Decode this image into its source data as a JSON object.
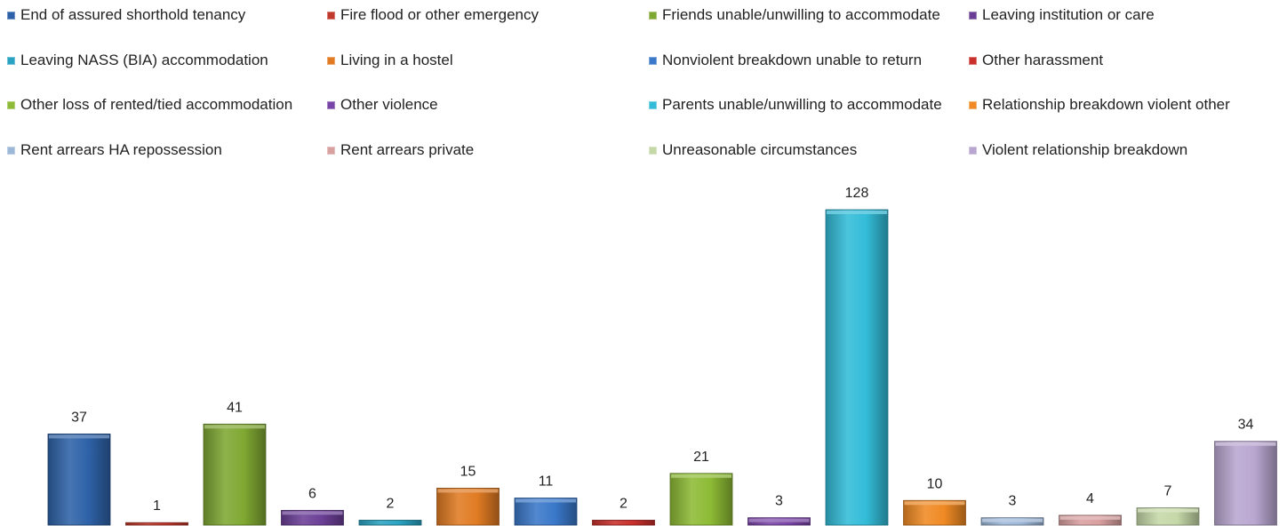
{
  "chart_data": {
    "type": "bar",
    "title": "",
    "xlabel": "",
    "ylabel": "",
    "ylim": [
      0,
      128
    ],
    "grid": false,
    "legend_position": "top",
    "categories": [
      "End of assured shorthold tenancy",
      "Fire flood or other emergency",
      "Friends unable/unwilling to accommodate",
      "Leaving institution or care",
      "Leaving NASS (BIA) accommodation",
      "Living in a hostel",
      "Nonviolent breakdown unable to return",
      "Other harassment",
      "Other loss of rented/tied accommodation",
      "Other violence",
      "Parents unable/unwilling to accommodate",
      "Relationship breakdown violent other",
      "Rent arrears HA repossession",
      "Rent arrears private",
      "Unreasonable circumstances",
      "Violent relationship breakdown"
    ],
    "values": [
      37,
      1,
      41,
      6,
      2,
      15,
      11,
      2,
      21,
      3,
      128,
      10,
      3,
      4,
      7,
      34
    ],
    "colors": [
      "#2e62a8",
      "#c0392b",
      "#7fa832",
      "#6b3f96",
      "#2aa3c2",
      "#e07b23",
      "#3a78c9",
      "#c9302c",
      "#8dbb35",
      "#7a45a8",
      "#33bcd8",
      "#f08a24",
      "#9cb7d8",
      "#d9a0a0",
      "#c5d8a8",
      "#b9a6d0"
    ]
  }
}
